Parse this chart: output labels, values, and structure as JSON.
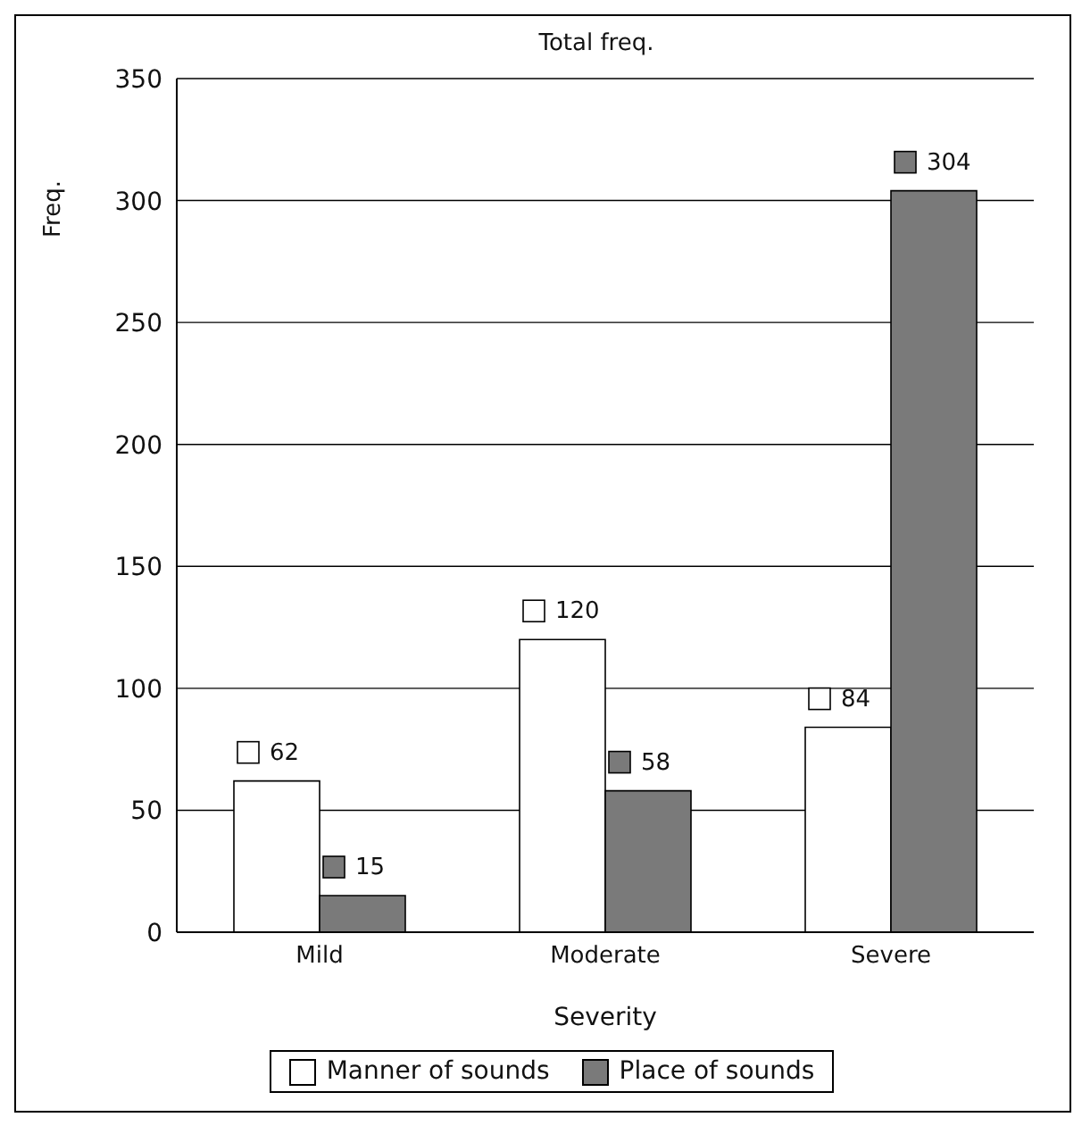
{
  "chart_data": {
    "type": "bar",
    "title": "Total freq.",
    "xlabel": "Severity",
    "ylabel": "Freq.",
    "categories": [
      "Mild",
      "Moderate",
      "Severe"
    ],
    "series": [
      {
        "name": "Manner of sounds",
        "color": "#ffffff",
        "values": [
          62,
          120,
          84
        ]
      },
      {
        "name": "Place of sounds",
        "color": "#7a7a7a",
        "values": [
          15,
          58,
          304
        ]
      }
    ],
    "ylim": [
      0,
      350
    ],
    "yticks": [
      0,
      50,
      100,
      150,
      200,
      250,
      300,
      350
    ],
    "grid": "y",
    "legend": "bottom",
    "data_labels": true
  }
}
